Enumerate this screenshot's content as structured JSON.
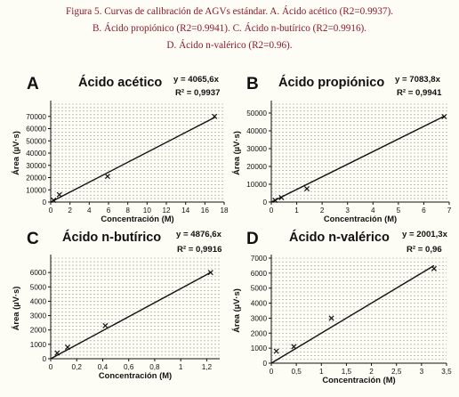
{
  "caption": {
    "line1": "Figura 5. Curvas de calibración de AGVs estándar. A. Ácido acético (R2=0.9937).",
    "line2": "B. Ácido propiónico (R2=0.9941). C. Ácido n-butírico (R2=0.9916).",
    "line3": "D. Ácido n-valérico (R2=0.96)."
  },
  "colors": {
    "caption": "#8b1a2b",
    "grid": "#9a9a9a",
    "line": "#111111",
    "background": "#fdfcf5"
  },
  "chart_data": [
    {
      "type": "scatter",
      "letter": "A",
      "title": "Ácido acético",
      "equation": "y = 4065,6x",
      "r2": "R² = 0,9937",
      "xlabel": "Concentración (M)",
      "ylabel": "Área (µV·s)",
      "xlim": [
        0,
        18
      ],
      "ylim": [
        0,
        80000
      ],
      "xticks": [
        0,
        2,
        4,
        6,
        8,
        10,
        12,
        14,
        16,
        18
      ],
      "xtick_labels": [
        "0",
        "2",
        "4",
        "6",
        "8",
        "10",
        "12",
        "14",
        "16",
        "18"
      ],
      "yticks": [
        0,
        10000,
        20000,
        30000,
        40000,
        50000,
        60000,
        70000
      ],
      "ytick_labels": [
        "0",
        "10000",
        "20000",
        "30000",
        "40000",
        "50000",
        "60000",
        "70000"
      ],
      "slope": 4065.6,
      "line_x": [
        0,
        17
      ],
      "points": [
        {
          "x": 0.3,
          "y": 1500
        },
        {
          "x": 0.9,
          "y": 6000
        },
        {
          "x": 5.9,
          "y": 21000
        },
        {
          "x": 17,
          "y": 70000
        }
      ]
    },
    {
      "type": "scatter",
      "letter": "B",
      "title": "Ácido propiónico",
      "equation": "y = 7083,8x",
      "r2": "R² = 0,9941",
      "xlabel": "Concentración (M)",
      "ylabel": "Área (µV·s)",
      "xlim": [
        0,
        7
      ],
      "ylim": [
        0,
        55000
      ],
      "xticks": [
        0,
        1,
        2,
        3,
        4,
        5,
        6,
        7
      ],
      "xtick_labels": [
        "0",
        "1",
        "2",
        "3",
        "4",
        "5",
        "6",
        "7"
      ],
      "yticks": [
        0,
        10000,
        20000,
        30000,
        40000,
        50000
      ],
      "ytick_labels": [
        "0",
        "10000",
        "20000",
        "30000",
        "40000",
        "50000"
      ],
      "slope": 7083.8,
      "line_x": [
        0,
        6.8
      ],
      "points": [
        {
          "x": 0.15,
          "y": 1000
        },
        {
          "x": 0.4,
          "y": 2500
        },
        {
          "x": 1.4,
          "y": 7500
        },
        {
          "x": 6.8,
          "y": 48000
        }
      ]
    },
    {
      "type": "scatter",
      "letter": "C",
      "title": "Ácido n-butírico",
      "equation": "y = 4876,6x",
      "r2": "R² = 0,9916",
      "xlabel": "Concentración (M)",
      "ylabel": "Área (µV·s)",
      "xlim": [
        0,
        1.3
      ],
      "ylim": [
        0,
        7000
      ],
      "xticks": [
        0,
        0.2,
        0.4,
        0.6,
        0.8,
        1,
        1.2
      ],
      "xtick_labels": [
        "0",
        "0,2",
        "0,4",
        "0,6",
        "0,8",
        "1",
        "1,2"
      ],
      "yticks": [
        0,
        1000,
        2000,
        3000,
        4000,
        5000,
        6000
      ],
      "ytick_labels": [
        "0",
        "1000",
        "2000",
        "3000",
        "4000",
        "5000",
        "6000"
      ],
      "slope": 4876.6,
      "line_x": [
        0,
        1.23
      ],
      "points": [
        {
          "x": 0.05,
          "y": 400
        },
        {
          "x": 0.13,
          "y": 800
        },
        {
          "x": 0.42,
          "y": 2300
        },
        {
          "x": 1.23,
          "y": 6000
        }
      ]
    },
    {
      "type": "scatter",
      "letter": "D",
      "title": "Ácido n-valérico",
      "equation": "y = 2001,3x",
      "r2": "R² = 0,96",
      "xlabel": "Concentración (M)",
      "ylabel": "Área (µV·s)",
      "xlim": [
        0,
        3.5
      ],
      "ylim": [
        0,
        7000
      ],
      "xticks": [
        0,
        0.5,
        1,
        1.5,
        2,
        2.5,
        3,
        3.5
      ],
      "xtick_labels": [
        "0",
        "0,5",
        "1",
        "1,5",
        "2",
        "2,5",
        "3",
        "3,5"
      ],
      "yticks": [
        0,
        1000,
        2000,
        3000,
        4000,
        5000,
        6000,
        7000
      ],
      "ytick_labels": [
        "0",
        "1000",
        "2000",
        "3000",
        "4000",
        "5000",
        "6000",
        "7000"
      ],
      "slope": 2001.3,
      "line_x": [
        0,
        3.25
      ],
      "points": [
        {
          "x": 0.1,
          "y": 800
        },
        {
          "x": 0.45,
          "y": 1100
        },
        {
          "x": 1.2,
          "y": 3000
        },
        {
          "x": 3.25,
          "y": 6300
        }
      ]
    }
  ]
}
